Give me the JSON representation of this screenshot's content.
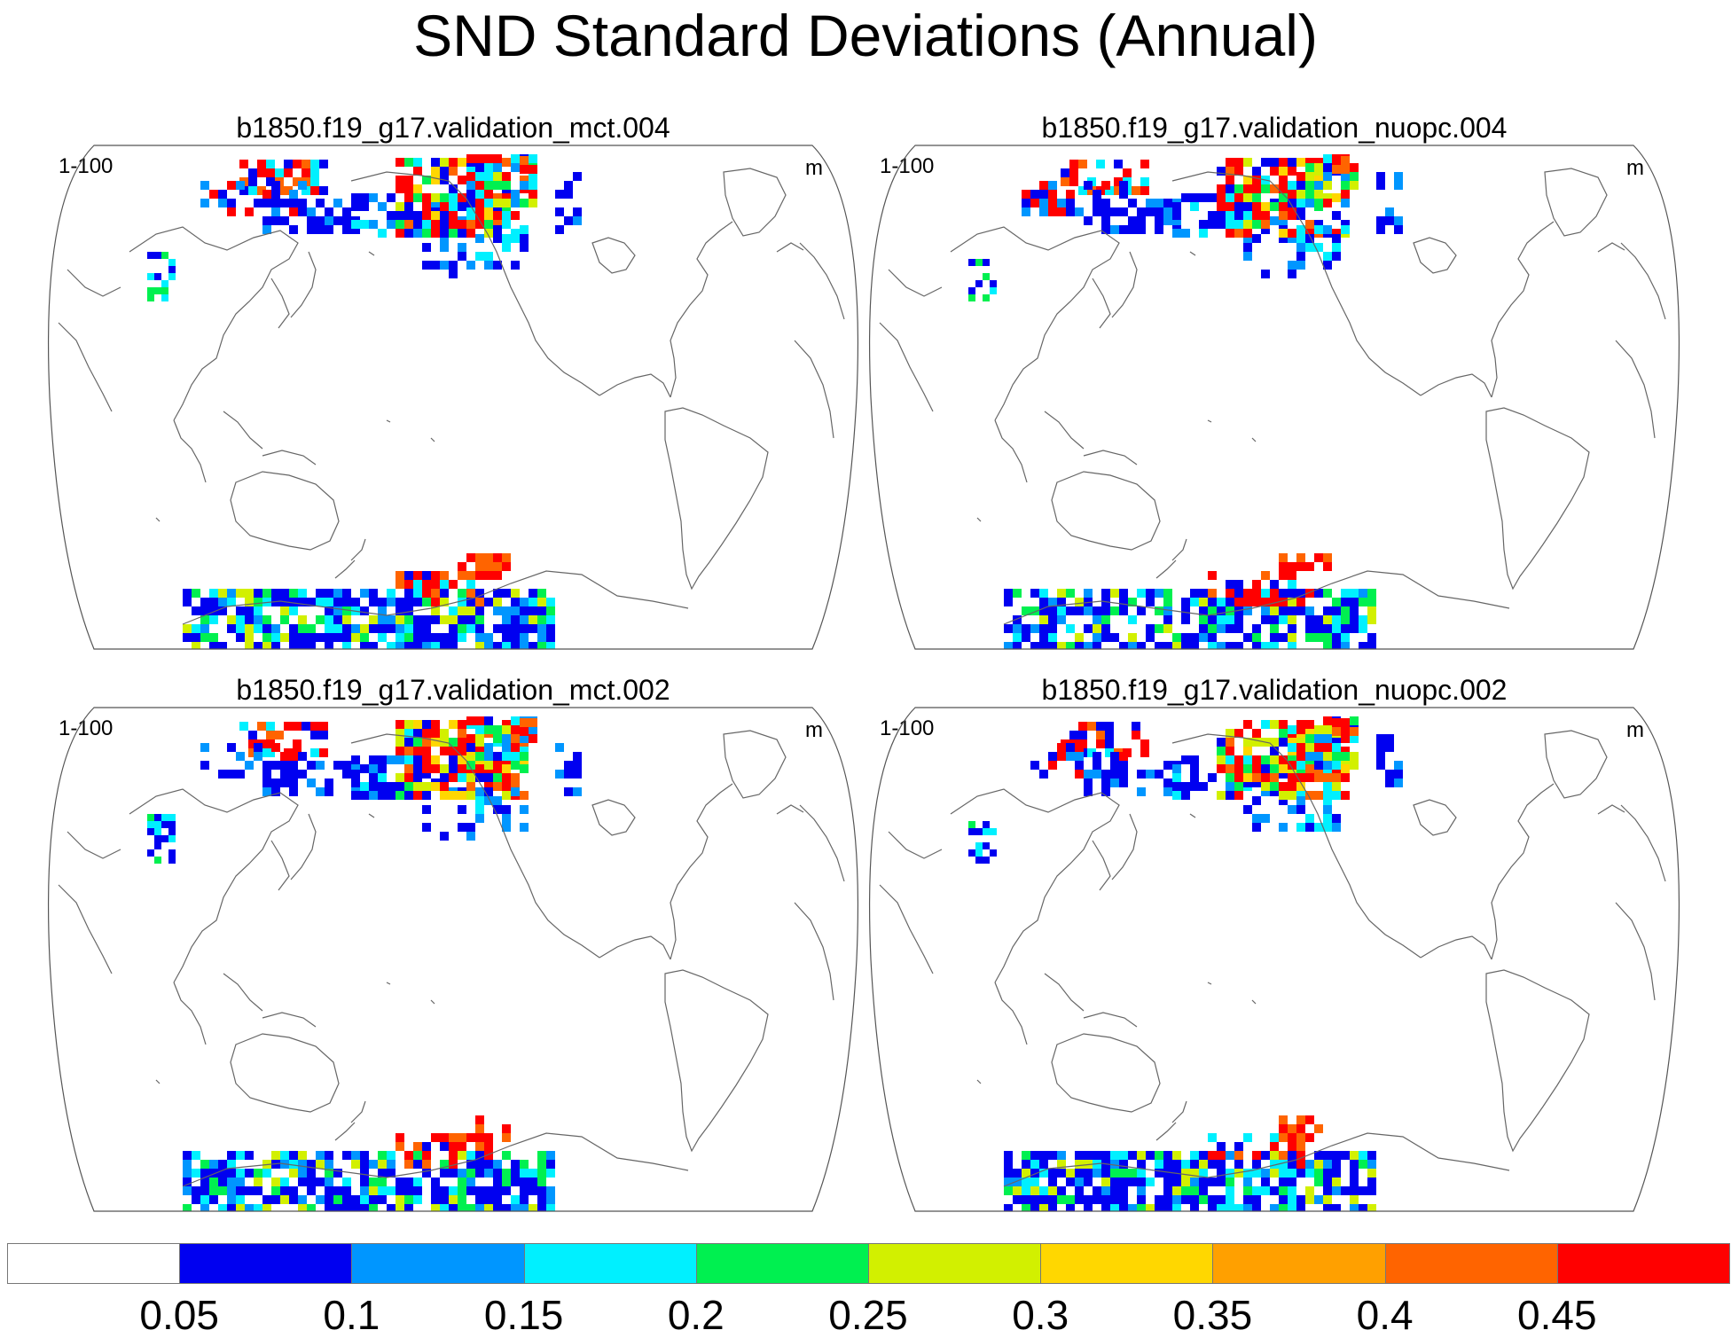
{
  "title": "SND Standard Deviations (Annual)",
  "panels": [
    {
      "title": "b1850.f19_g17.validation_mct.004",
      "left_label": "1-100",
      "right_label": "m"
    },
    {
      "title": "b1850.f19_g17.validation_nuopc.004",
      "left_label": "1-100",
      "right_label": "m"
    },
    {
      "title": "b1850.f19_g17.validation_mct.002",
      "left_label": "1-100",
      "right_label": "m"
    },
    {
      "title": "b1850.f19_g17.validation_nuopc.002",
      "left_label": "1-100",
      "right_label": "m"
    }
  ],
  "colorbar": {
    "colors": [
      "#ffffff",
      "#0000f0",
      "#0096ff",
      "#00f0ff",
      "#00f050",
      "#d2f000",
      "#ffd700",
      "#ffa000",
      "#ff6400",
      "#ff0000"
    ],
    "labels": [
      "0.05",
      "0.1",
      "0.15",
      "0.2",
      "0.25",
      "0.3",
      "0.35",
      "0.4",
      "0.45"
    ]
  }
}
